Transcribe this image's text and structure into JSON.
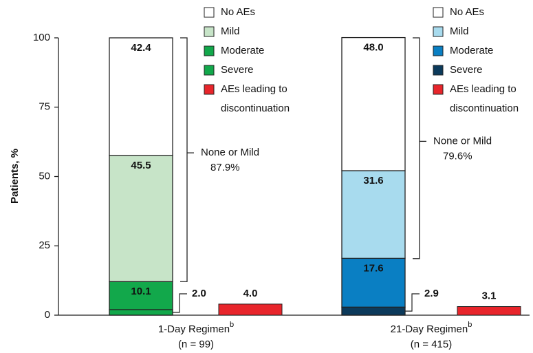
{
  "chart_data": {
    "type": "stacked_bar",
    "ylabel": "Patients, %",
    "ylim": [
      0,
      100
    ],
    "yticks": [
      0,
      25,
      50,
      75,
      100
    ],
    "panels": [
      {
        "category": "1-Day Regimen",
        "superscript": "b",
        "n_label": "(n = 99)",
        "series": [
          {
            "name": "No AEs",
            "color": "#ffffff",
            "value": 42.4
          },
          {
            "name": "Mild",
            "color": "#c7e4c8",
            "value": 45.5
          },
          {
            "name": "Moderate",
            "color": "#12a84b",
            "value": 10.1
          },
          {
            "name": "Severe",
            "color": "#12a84b",
            "value": 2.0,
            "value_label": "2.0"
          }
        ],
        "discontinuation": {
          "name": "AEs leading to discontinuation",
          "color": "#e8252b",
          "value": 4.0,
          "value_label": "4.0"
        },
        "bracket": {
          "label": "None or Mild",
          "value": 87.9,
          "value_label": "87.9%"
        }
      },
      {
        "category": "21-Day Regimen",
        "superscript": "b",
        "n_label": "(n = 415)",
        "series": [
          {
            "name": "No AEs",
            "color": "#ffffff",
            "value": 48.0,
            "value_label": "48.0"
          },
          {
            "name": "Mild",
            "color": "#a8dbee",
            "value": 31.6
          },
          {
            "name": "Moderate",
            "color": "#0a7fc3",
            "value": 17.6
          },
          {
            "name": "Severe",
            "color": "#0c3a5b",
            "value": 2.9
          }
        ],
        "discontinuation": {
          "name": "AEs leading to discontinuation",
          "color": "#e8252b",
          "value": 3.1
        },
        "bracket": {
          "label": "None or Mild",
          "value": 79.6,
          "value_label": "79.6%"
        }
      }
    ]
  }
}
